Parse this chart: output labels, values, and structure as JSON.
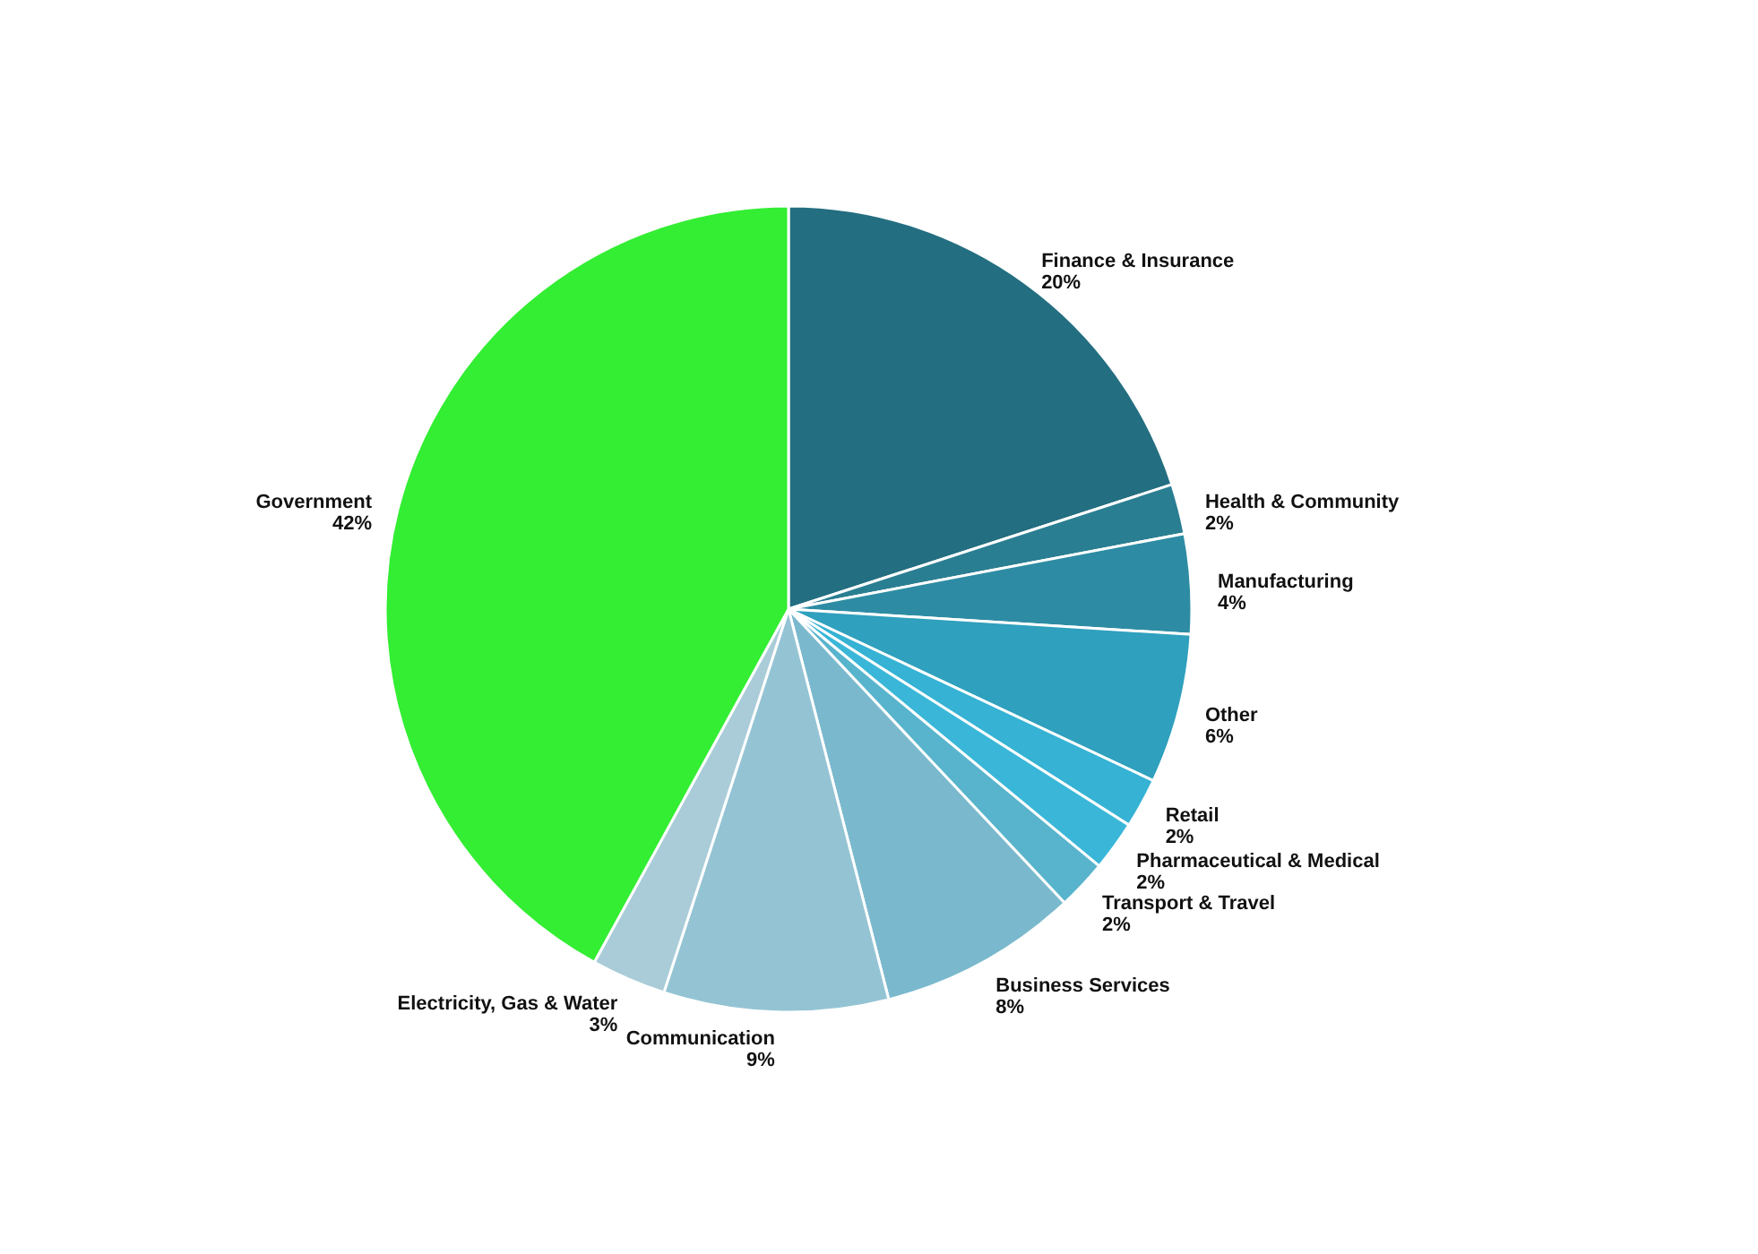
{
  "chart_data": {
    "type": "pie",
    "categories": [
      "Finance & Insurance",
      "Health & Community",
      "Manufacturing",
      "Other",
      "Retail",
      "Pharmaceutical & Medical",
      "Transport & Travel",
      "Business Services",
      "Communication",
      "Electricity, Gas & Water",
      "Government"
    ],
    "values": [
      20,
      2,
      4,
      6,
      2,
      2,
      2,
      8,
      9,
      3,
      42
    ],
    "value_labels": [
      "20%",
      "2%",
      "4%",
      "6%",
      "2%",
      "2%",
      "2%",
      "8%",
      "9%",
      "3%",
      "42%"
    ],
    "colors": [
      "#236e80",
      "#2a7e92",
      "#2d8ca3",
      "#2fa0bd",
      "#35b2d4",
      "#3ab7d8",
      "#58b4cc",
      "#7ab9cd",
      "#94c4d4",
      "#a9ccd8",
      "#33ee33"
    ],
    "legend": false
  }
}
